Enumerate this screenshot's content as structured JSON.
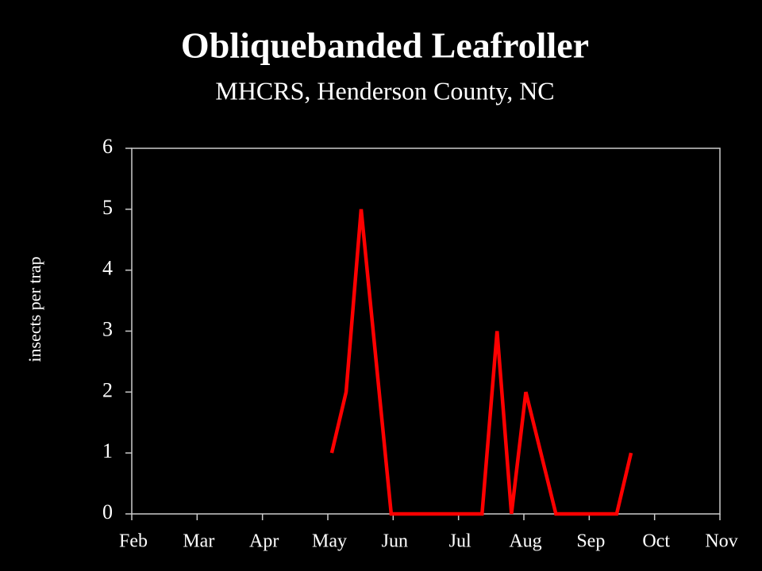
{
  "chart_data": {
    "type": "line",
    "title": "Obliquebanded Leafroller",
    "subtitle": "MHCRS, Henderson County, NC",
    "y_label": "insects per trap",
    "x": [
      3.06,
      3.28,
      3.51,
      3.97,
      5.36,
      5.59,
      5.81,
      6.03,
      6.49,
      7.42,
      7.64
    ],
    "series": [
      {
        "color": "#ff0000",
        "values": [
          1,
          2,
          5,
          0,
          0,
          3,
          0,
          2,
          0,
          0,
          1
        ]
      }
    ],
    "xlim": [
      0,
      9
    ],
    "xticks": [
      {
        "value": 0,
        "label": "Feb"
      },
      {
        "value": 1,
        "label": "Mar"
      },
      {
        "value": 2,
        "label": "Apr"
      },
      {
        "value": 3,
        "label": "May"
      },
      {
        "value": 4,
        "label": "Jun"
      },
      {
        "value": 5,
        "label": "Jul"
      },
      {
        "value": 6,
        "label": "Aug"
      },
      {
        "value": 7,
        "label": "Sep"
      },
      {
        "value": 8,
        "label": "Oct"
      },
      {
        "value": 9,
        "label": "Nov"
      }
    ],
    "ylim": [
      0,
      6
    ],
    "yticks": [
      0,
      1,
      2,
      3,
      4,
      5,
      6
    ]
  }
}
